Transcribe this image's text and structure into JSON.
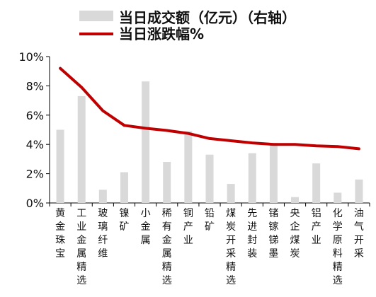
{
  "chart_data": {
    "type": "bar",
    "categories": [
      "黄金珠宝",
      "工业金属精选",
      "玻璃纤维",
      "镍矿",
      "小金属",
      "稀有金属精选",
      "铜产业",
      "铅矿",
      "煤炭开采精选",
      "先进封装",
      "锗镓锑墨",
      "央企煤炭",
      "铝产业",
      "化学原料精选",
      "油气开采"
    ],
    "series": [
      {
        "name": "当日成交额（亿元）（右轴）",
        "type": "bar",
        "axis": "right",
        "color": "#d9d9d9",
        "values": [
          5.0,
          7.3,
          0.9,
          2.1,
          8.3,
          2.8,
          4.9,
          3.3,
          1.3,
          3.4,
          4.1,
          0.4,
          2.7,
          0.7,
          1.6
        ]
      },
      {
        "name": "当日涨跌幅%",
        "type": "line",
        "axis": "left",
        "color": "#c00000",
        "values": [
          9.2,
          7.9,
          6.3,
          5.3,
          5.1,
          4.95,
          4.75,
          4.4,
          4.25,
          4.1,
          4.0,
          4.0,
          3.9,
          3.85,
          3.7
        ]
      }
    ],
    "yaxis_left": {
      "ylim": [
        0,
        10
      ],
      "ticks": [
        "0%",
        "2%",
        "4%",
        "6%",
        "8%",
        "10%"
      ]
    },
    "legend_position": "top-right",
    "grid": false
  }
}
